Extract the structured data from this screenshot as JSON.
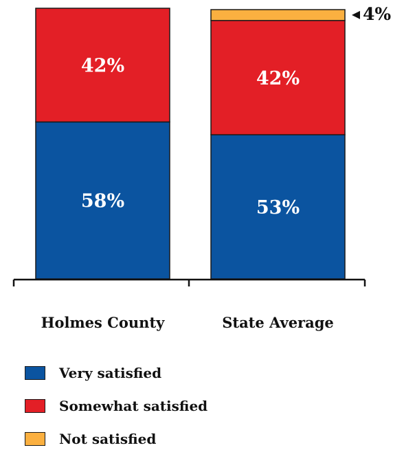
{
  "chart_data": {
    "type": "bar",
    "stacked": true,
    "percent_stacked": true,
    "categories": [
      "Holmes County",
      "State Average"
    ],
    "series": [
      {
        "name": "Very satisfied",
        "values": [
          58,
          53
        ],
        "labels": [
          "58%",
          "53%"
        ],
        "color": "#0b54a0"
      },
      {
        "name": "Somewhat satisfied",
        "values": [
          42,
          42
        ],
        "labels": [
          "42%",
          "42%"
        ],
        "color": "#e31f26"
      },
      {
        "name": "Not satisfied",
        "values": [
          0,
          4
        ],
        "labels": [
          "",
          "4%"
        ],
        "color": "#fbb040"
      }
    ],
    "ylim": [
      0,
      100
    ],
    "grid": false,
    "legend_position": "bottom-left"
  }
}
